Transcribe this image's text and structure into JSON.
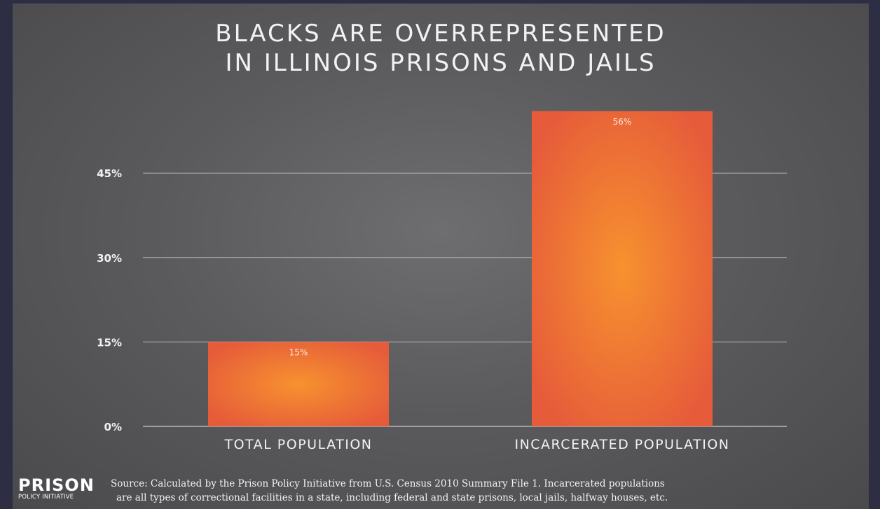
{
  "title_lines": [
    "BLACKS ARE OVERREPRESENTED",
    "IN ILLINOIS PRISONS AND JAILS"
  ],
  "chart_data": {
    "type": "bar",
    "title": "BLACKS ARE OVERREPRESENTED IN ILLINOIS PRISONS AND JAILS",
    "categories": [
      "TOTAL POPULATION",
      "INCARCERATED POPULATION"
    ],
    "values": [
      15,
      56
    ],
    "data_labels": [
      "15%",
      "56%"
    ],
    "y_ticks": [
      0,
      15,
      30,
      45
    ],
    "y_tick_labels": [
      "0%",
      "15%",
      "30%",
      "45%"
    ],
    "ylim": [
      0,
      60
    ],
    "xlabel": "",
    "ylabel": "",
    "grid": true,
    "legend": "none",
    "colors": {
      "bar_center": "#f7922f",
      "bar_edge": "#e65c3a",
      "gridline": "#b8b8b8",
      "text": "#f2f2f2",
      "background": "#5e5e60"
    }
  },
  "logo": {
    "main": "PRISON",
    "sub": "POLICY INITIATIVE"
  },
  "source_lines": [
    "Source: Calculated by the Prison Policy Initiative from U.S. Census 2010 Summary File 1. Incarcerated populations",
    "are all types of correctional facilities in a state, including federal and state prisons, local jails, halfway houses, etc."
  ]
}
